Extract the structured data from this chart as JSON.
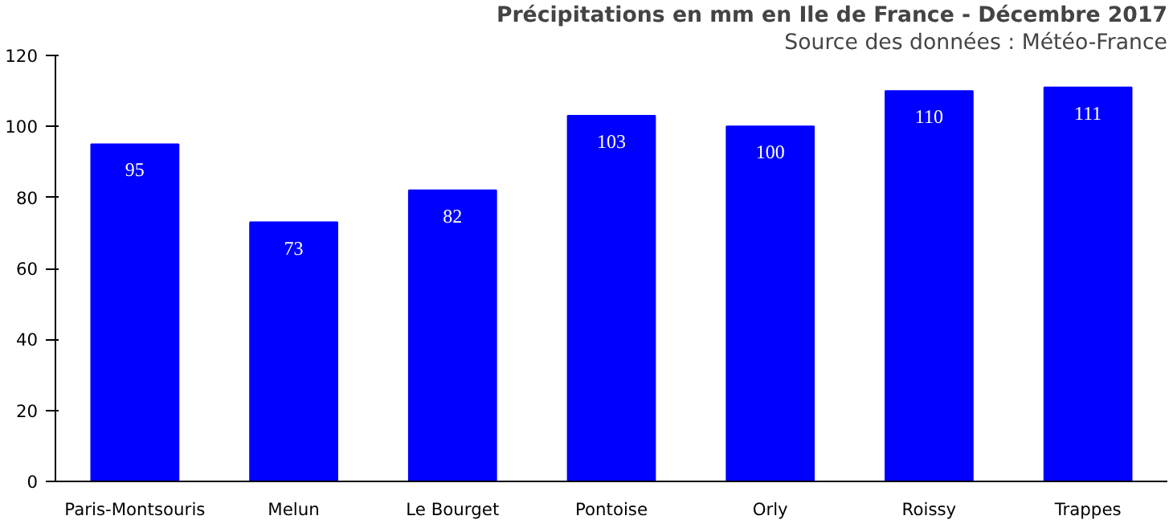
{
  "chart_data": {
    "type": "bar",
    "title": "Précipitations en mm en Ile de France - Décembre 2017",
    "subtitle": "Source des données : Météo-France",
    "categories": [
      "Paris-Montsouris",
      "Melun",
      "Le Bourget",
      "Pontoise",
      "Orly",
      "Roissy",
      "Trappes"
    ],
    "values": [
      95,
      73,
      82,
      103,
      100,
      110,
      111
    ],
    "color": "#0000ff",
    "ylim": [
      0,
      120
    ],
    "yticks": [
      0,
      20,
      40,
      60,
      80,
      100,
      120
    ],
    "grid": false,
    "data_labels": true
  }
}
